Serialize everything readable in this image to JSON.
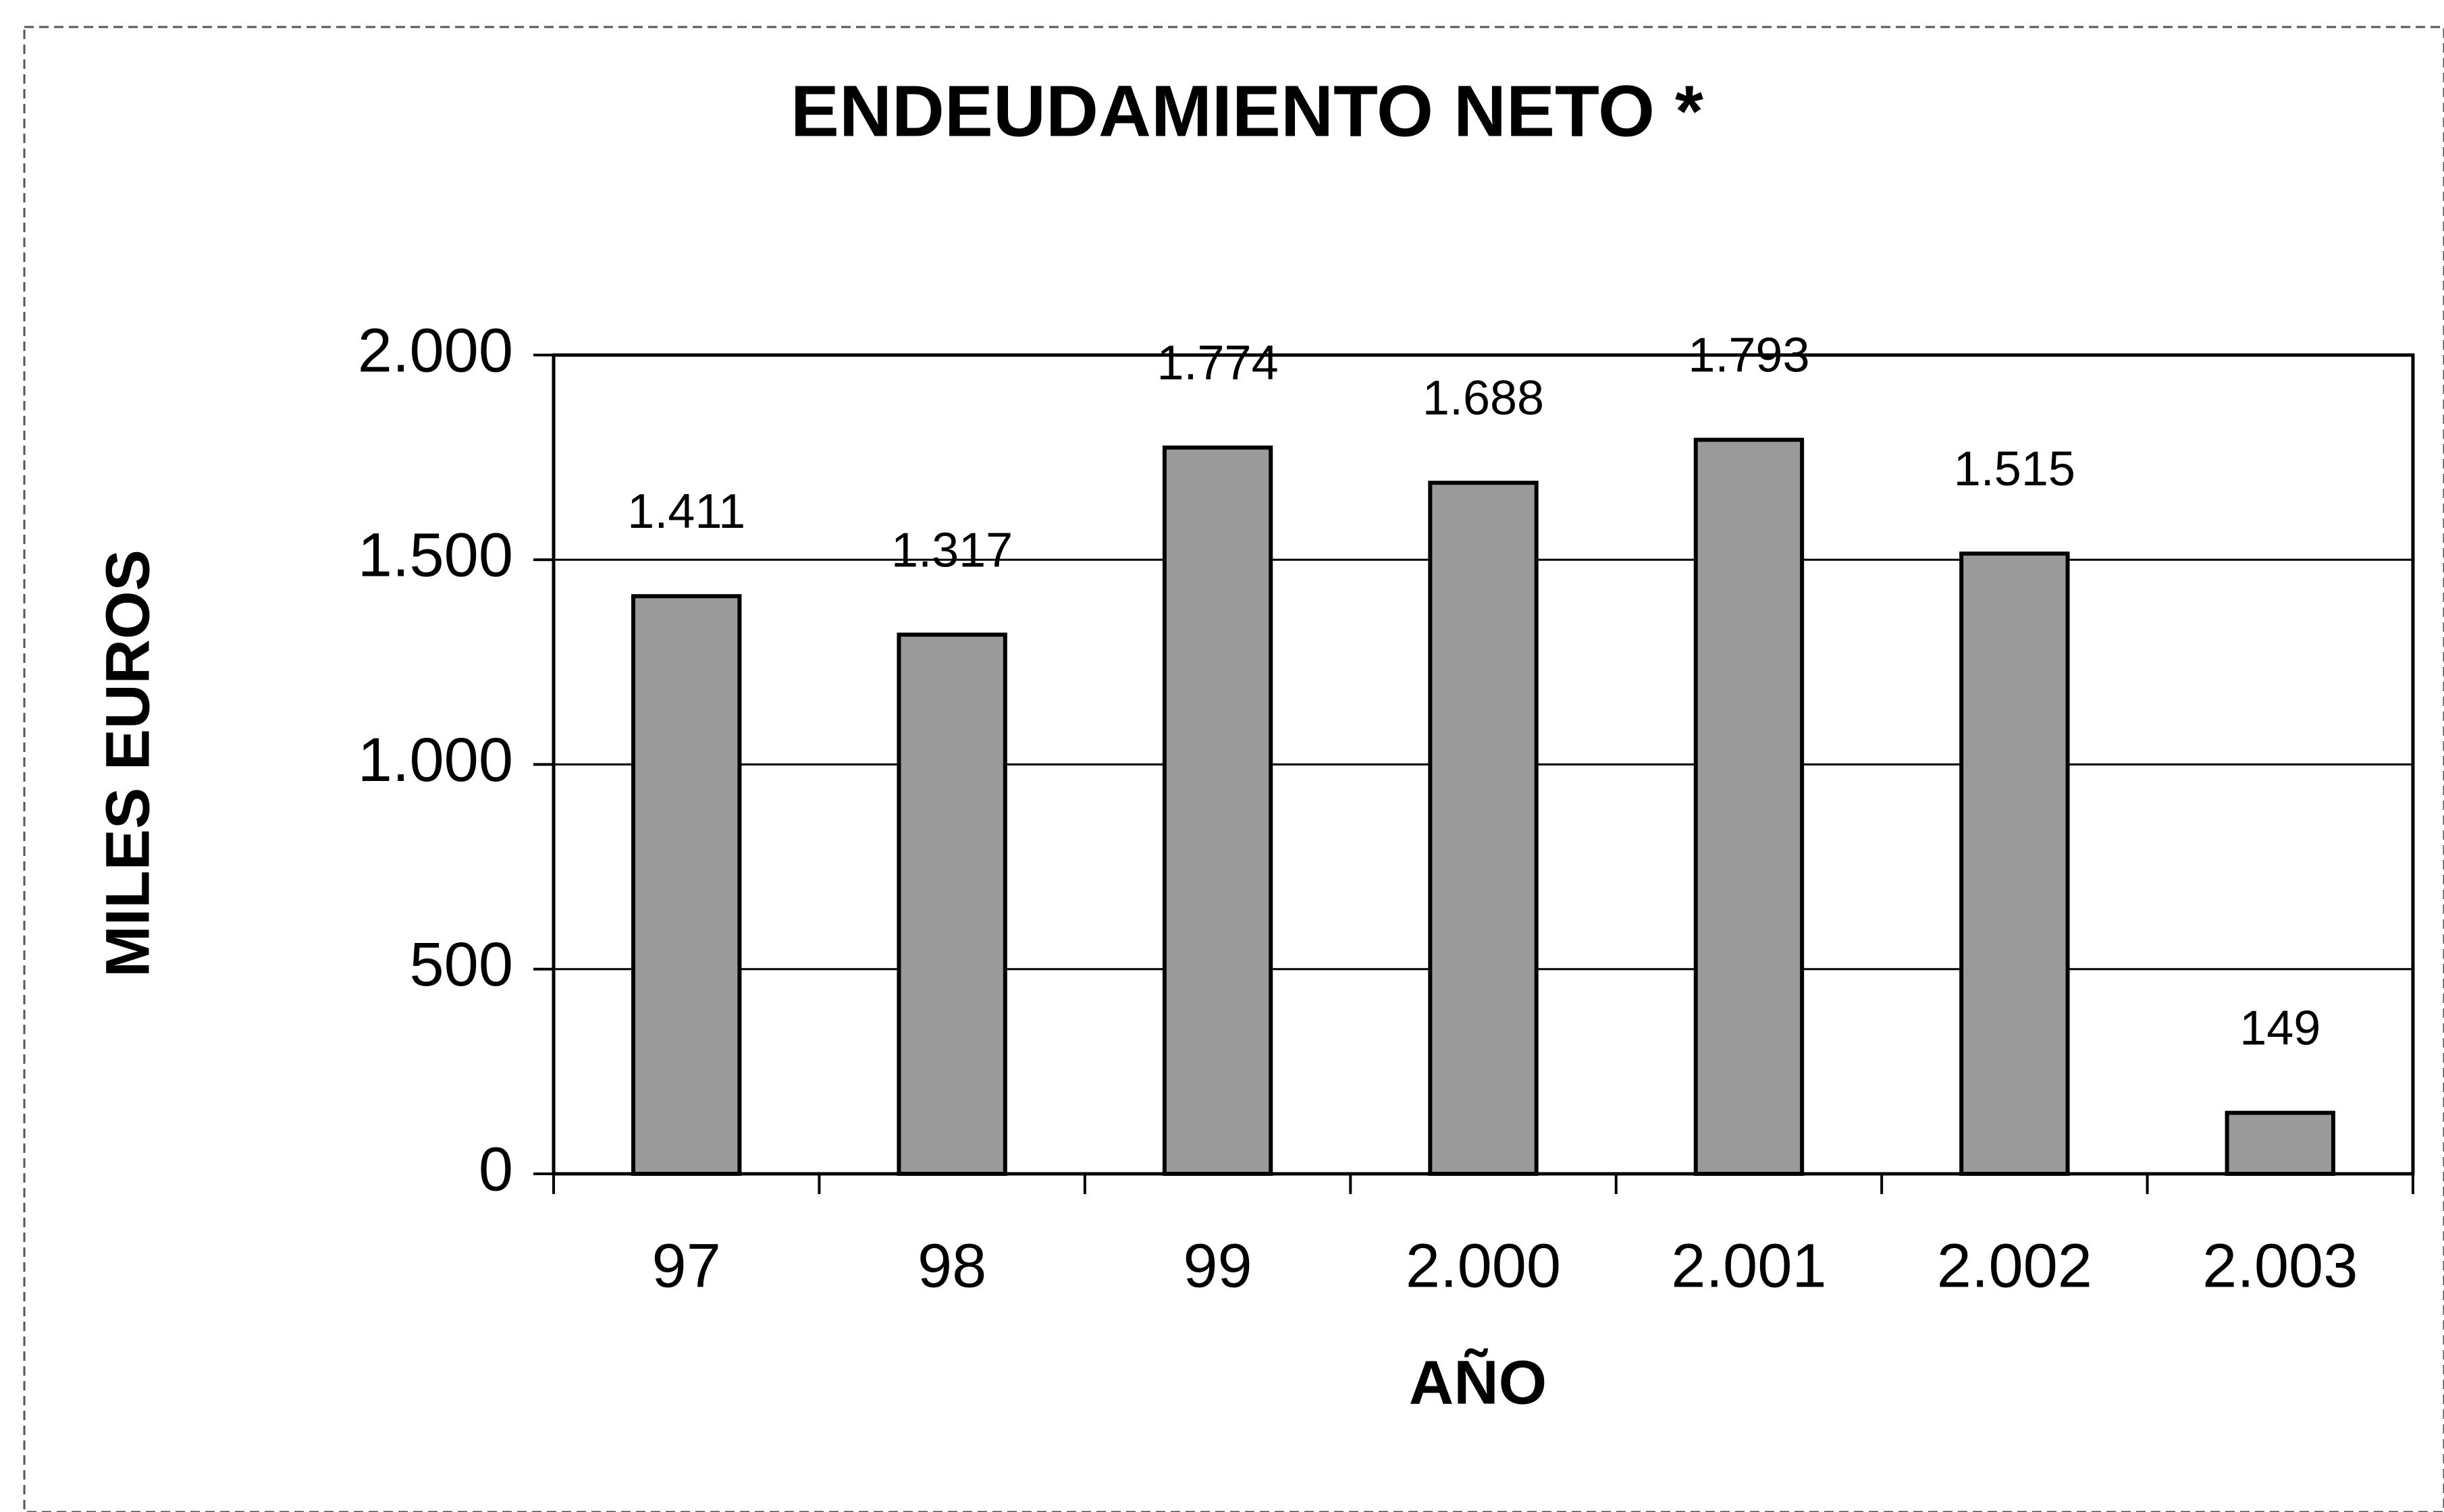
{
  "chart_data": {
    "type": "bar",
    "title": "ENDEUDAMIENTO NETO *",
    "x_label": "AÑO",
    "y_label": "MILES EUROS",
    "categories": [
      "97",
      "98",
      "99",
      "2.000",
      "2.001",
      "2.002",
      "2.003"
    ],
    "values": [
      1411,
      1317,
      1774,
      1688,
      1793,
      1515,
      149
    ],
    "value_labels": [
      "1.411",
      "1.317",
      "1.774",
      "1.688",
      "1.793",
      "1.515",
      "149"
    ],
    "color": "#9a9a9a",
    "ylim": [
      0,
      2000
    ],
    "yticks": [
      0,
      500,
      {
        "value": 1000,
        "label": "1.000"
      },
      {
        "value": 1500,
        "label": "1.500"
      },
      {
        "value": 2000,
        "label": "2.000"
      }
    ],
    "grid": true
  }
}
